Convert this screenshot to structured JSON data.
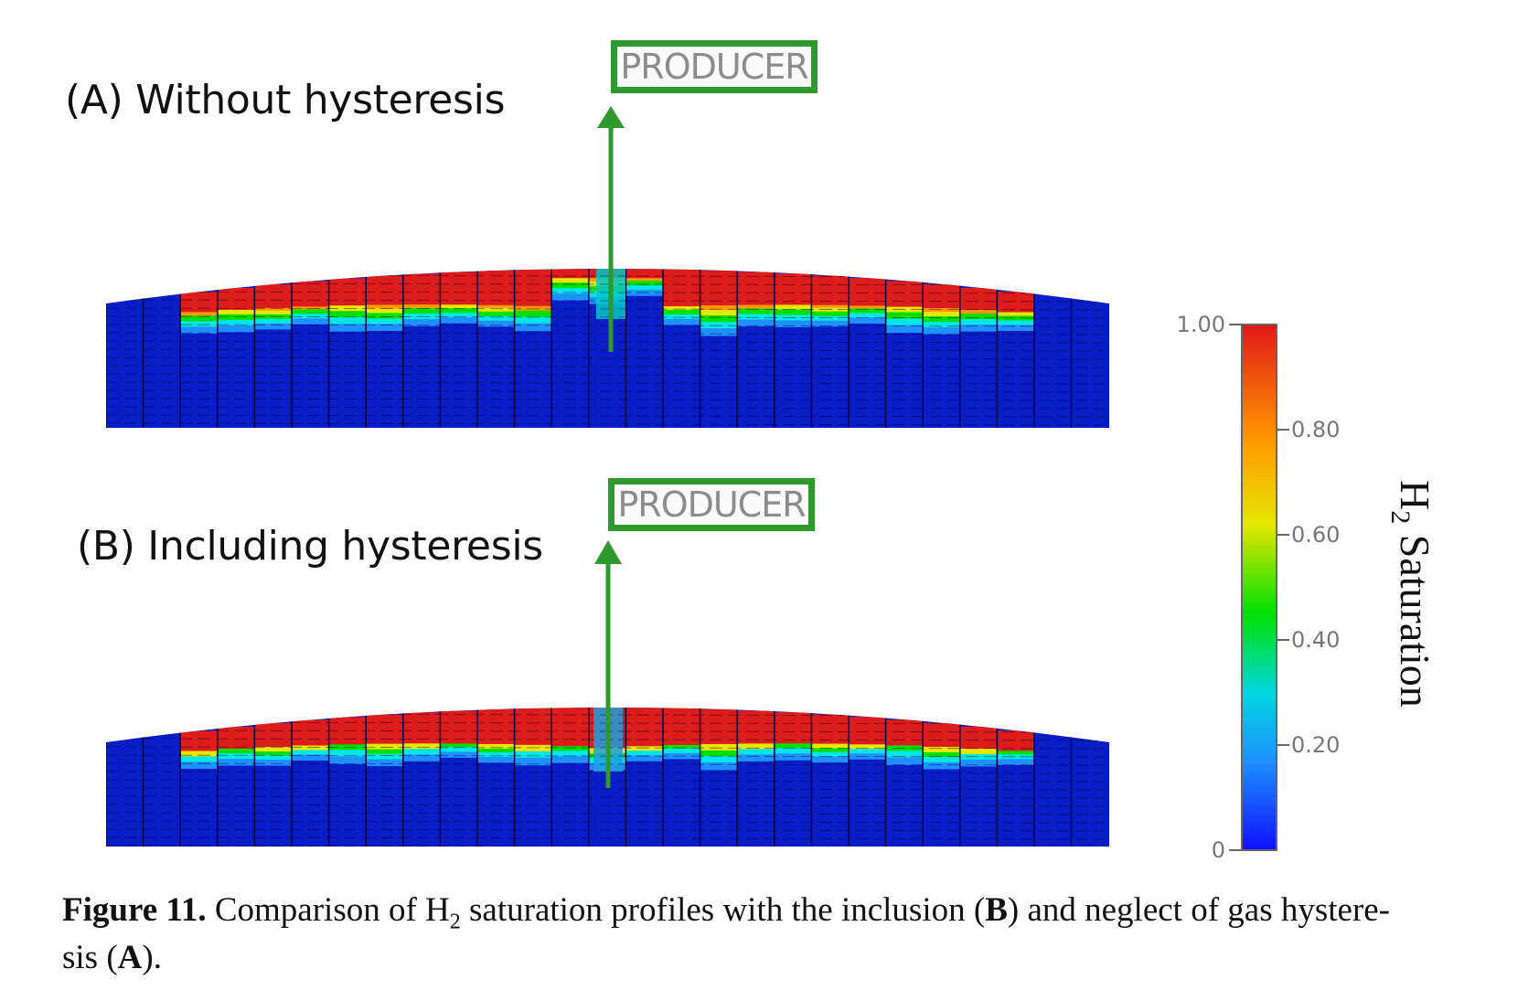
{
  "panel_a": {
    "title": "(A) Without hysteresis",
    "producer_label": "PRODUCER"
  },
  "panel_b": {
    "title": "(B) Including hysteresis",
    "producer_label": "PRODUCER"
  },
  "colorbar": {
    "title_prefix": "H",
    "title_sub": "2",
    "title_suffix": " Saturation",
    "ticks": [
      {
        "value": 1.0,
        "label": "1.00"
      },
      {
        "value": 0.8,
        "label": "0.80"
      },
      {
        "value": 0.6,
        "label": "0.60"
      },
      {
        "value": 0.4,
        "label": "0.40"
      },
      {
        "value": 0.2,
        "label": "0.20"
      },
      {
        "value": 0.0,
        "label": "0"
      }
    ],
    "colors": [
      "#1010c8",
      "#1e90ff",
      "#00e5e5",
      "#00e000",
      "#e6e600",
      "#ff9900",
      "#dd1c1c"
    ]
  },
  "caption": {
    "label": "Figure 11.",
    "text_1": " Comparison of H",
    "sub": "2",
    "text_2": " saturation profiles with the inclusion (",
    "bold_b": "B",
    "text_3": ") and neglect of gas hystere-",
    "text_4": "sis (",
    "bold_a": "A",
    "text_5": ")."
  },
  "colors": {
    "well": "#2e9a2e",
    "deep_blue": "#0a1ec8",
    "red": "#dd1c1c"
  }
}
